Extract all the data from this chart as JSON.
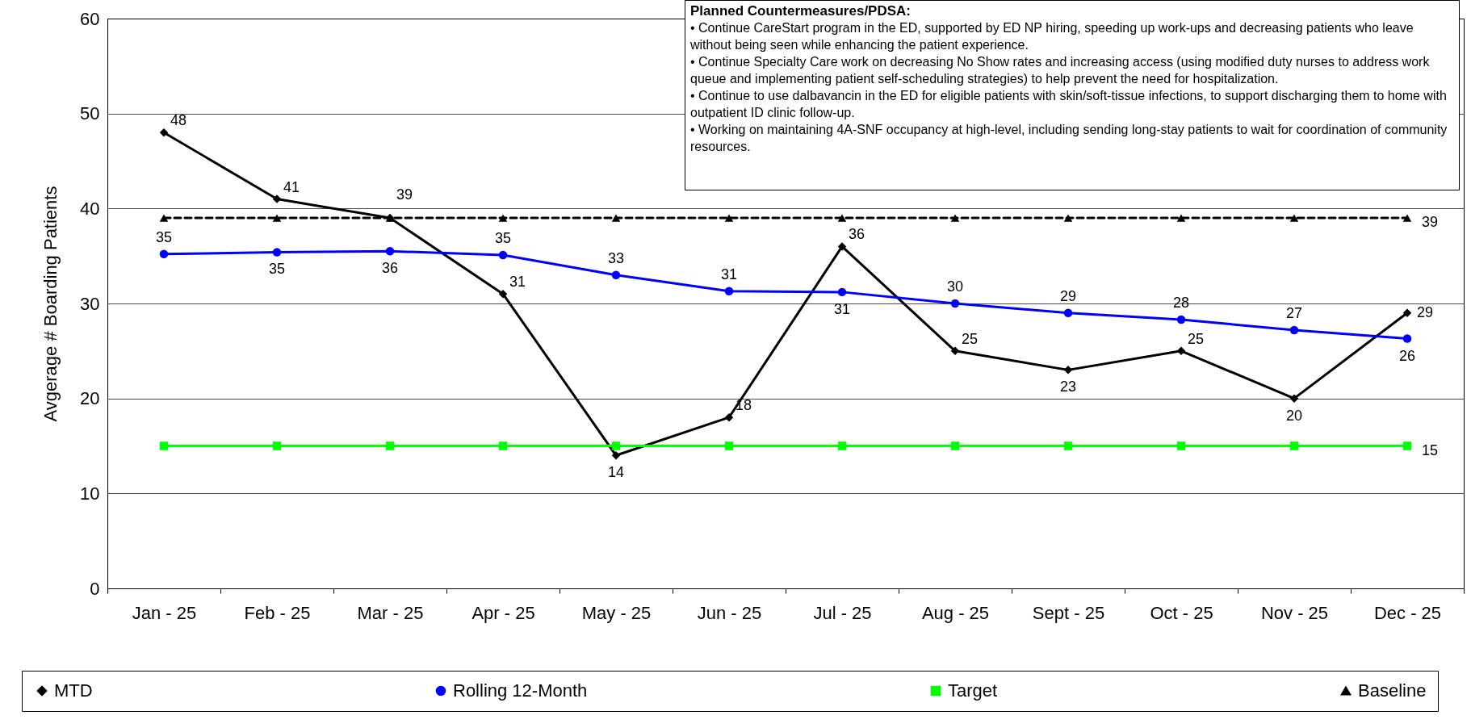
{
  "chart_data": {
    "type": "line",
    "ylabel": "Avgerage # Boarding Patients",
    "categories": [
      "Jan - 25",
      "Feb - 25",
      "Mar - 25",
      "Apr - 25",
      "May - 25",
      "Jun - 25",
      "Jul - 25",
      "Aug - 25",
      "Sept - 25",
      "Oct - 25",
      "Nov - 25",
      "Dec - 25"
    ],
    "series": [
      {
        "name": "MTD",
        "color": "#000000",
        "marker": "diamond",
        "line_style": "solid",
        "values": [
          48,
          41,
          39,
          31,
          14,
          18,
          36,
          25,
          23,
          25,
          20,
          29
        ],
        "value_labels": [
          "48",
          "41",
          "39",
          "31",
          "14",
          "18",
          "36",
          "25",
          "23",
          "25",
          "20",
          "29"
        ]
      },
      {
        "name": "Rolling 12-Month",
        "color": "#0000ff",
        "marker": "circle",
        "line_style": "solid",
        "values": [
          35.2,
          35.4,
          35.5,
          35.1,
          33.0,
          31.3,
          31.2,
          30.0,
          29.0,
          28.3,
          27.2,
          26.3
        ],
        "value_labels": [
          "35",
          "35",
          "36",
          "35",
          "33",
          "31",
          "31",
          "30",
          "29",
          "28",
          "27",
          "26"
        ]
      },
      {
        "name": "Target",
        "color": "#00ff00",
        "marker": "square",
        "line_style": "solid",
        "values": [
          15,
          15,
          15,
          15,
          15,
          15,
          15,
          15,
          15,
          15,
          15,
          15
        ],
        "value_labels": [
          null,
          null,
          null,
          null,
          null,
          null,
          null,
          null,
          null,
          null,
          null,
          "15"
        ]
      },
      {
        "name": "Baseline",
        "color": "#000000",
        "marker": "triangle",
        "line_style": "dashed",
        "values": [
          39,
          39,
          39,
          39,
          39,
          39,
          39,
          39,
          39,
          39,
          39,
          39
        ],
        "value_labels": [
          null,
          null,
          null,
          null,
          null,
          null,
          null,
          null,
          null,
          null,
          null,
          "39"
        ]
      }
    ],
    "ylim": [
      0,
      60
    ],
    "yticks": [
      0,
      10,
      20,
      30,
      40,
      50,
      60
    ],
    "grid": "y",
    "legend": "bottom",
    "annotations": [
      "Planned Countermeasures/PDSA:",
      "• Continue CareStart program in the ED, supported by ED NP hiring, speeding up  work-ups and decreasing patients who leave without being seen while enhancing the patient experience.",
      "• Continue Specialty Care work on decreasing No Show rates and increasing access (using modified duty nurses to address work queue and implementing patient self-scheduling strategies) to help prevent the need for hospitalization.",
      "• Continue to use dalbavancin in the ED for eligible patients with skin/soft-tissue infections, to support discharging them to home with outpatient ID clinic follow-up.",
      "• Working on maintaining 4A-SNF occupancy at high-level, including sending long-stay patients to wait for coordination of community resources."
    ]
  }
}
